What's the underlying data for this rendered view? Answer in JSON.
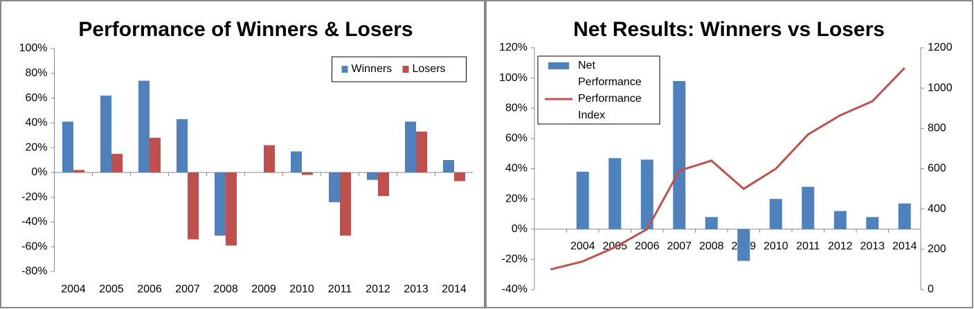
{
  "chart_data": [
    {
      "type": "bar",
      "title": "Performance of Winners & Losers",
      "categories": [
        "2004",
        "2005",
        "2006",
        "2007",
        "2008",
        "2009",
        "2010",
        "2011",
        "2012",
        "2013",
        "2014"
      ],
      "series": [
        {
          "name": "Winners",
          "color": "#4f81bd",
          "values": [
            41,
            62,
            74,
            43,
            -51,
            0,
            17,
            -24,
            -6,
            41,
            10
          ]
        },
        {
          "name": "Losers",
          "color": "#c0504d",
          "values": [
            2,
            15,
            28,
            -54,
            -59,
            22,
            -2,
            -51,
            -19,
            33,
            -7
          ]
        }
      ],
      "ylim": [
        -80,
        100
      ],
      "yticks": [
        {
          "value": -80,
          "label": "-80%"
        },
        {
          "value": -60,
          "label": "-60%"
        },
        {
          "value": -40,
          "label": "-40%"
        },
        {
          "value": -20,
          "label": "-20%"
        },
        {
          "value": 0,
          "label": "0%"
        },
        {
          "value": 20,
          "label": "20%"
        },
        {
          "value": 40,
          "label": "40%"
        },
        {
          "value": 60,
          "label": "60%"
        },
        {
          "value": 80,
          "label": "80%"
        },
        {
          "value": 100,
          "label": "100%"
        }
      ],
      "legend": "top-right",
      "grid": false
    },
    {
      "type": "combo",
      "title": "Net Results: Winners vs Losers",
      "categories": [
        null,
        "2004",
        "2005",
        "2006",
        "2007",
        "2008",
        "2009",
        "2010",
        "2011",
        "2012",
        "2013",
        "2014"
      ],
      "series": [
        {
          "name": "Net Performance",
          "type": "bar",
          "color": "#4f81bd",
          "values": [
            null,
            38,
            47,
            46,
            98,
            8,
            -21,
            20,
            28,
            12,
            8,
            17
          ]
        },
        {
          "name": "Performance Index",
          "type": "line",
          "axis": "y2",
          "color": "#c0504d",
          "values": [
            100,
            140,
            210,
            300,
            590,
            640,
            500,
            600,
            770,
            865,
            935,
            1100
          ]
        }
      ],
      "ylim": [
        -40,
        120
      ],
      "yticks": [
        {
          "value": -40,
          "label": "-40%"
        },
        {
          "value": -20,
          "label": "-20%"
        },
        {
          "value": 0,
          "label": "0%"
        },
        {
          "value": 20,
          "label": "20%"
        },
        {
          "value": 40,
          "label": "40%"
        },
        {
          "value": 60,
          "label": "60%"
        },
        {
          "value": 80,
          "label": "80%"
        },
        {
          "value": 100,
          "label": "100%"
        },
        {
          "value": 120,
          "label": "120%"
        }
      ],
      "y2lim": [
        0,
        1200
      ],
      "y2ticks": [
        0,
        200,
        400,
        600,
        800,
        1000,
        1200
      ],
      "legend": "top-left",
      "grid": false
    }
  ]
}
